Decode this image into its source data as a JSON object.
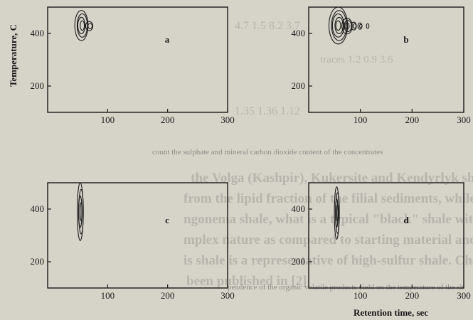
{
  "chart_data": [
    {
      "type": "contour",
      "panel": "a",
      "ylabel": "Temperature, C",
      "xlabel": "",
      "x_ticks": [
        100,
        200,
        300
      ],
      "y_ticks": [
        200,
        400
      ],
      "xlim": [
        0,
        300
      ],
      "ylim": [
        100,
        500
      ],
      "grid": false,
      "peaks": [
        {
          "x": 57,
          "y": 430,
          "width": 22,
          "height": 115,
          "rings": 4
        },
        {
          "x": 70,
          "y": 428,
          "width": 12,
          "height": 35,
          "rings": 2
        }
      ]
    },
    {
      "type": "contour",
      "panel": "b",
      "ylabel": "",
      "xlabel": "",
      "x_ticks": [
        100,
        200,
        300
      ],
      "y_ticks": [
        200,
        400
      ],
      "xlim": [
        0,
        300
      ],
      "ylim": [
        100,
        500
      ],
      "grid": false,
      "peaks": [
        {
          "x": 58,
          "y": 430,
          "width": 36,
          "height": 140,
          "rings": 5
        },
        {
          "x": 75,
          "y": 428,
          "width": 20,
          "height": 60,
          "rings": 3
        },
        {
          "x": 88,
          "y": 428,
          "width": 10,
          "height": 30,
          "rings": 2
        },
        {
          "x": 100,
          "y": 428,
          "width": 8,
          "height": 24,
          "rings": 2
        },
        {
          "x": 115,
          "y": 428,
          "width": 5,
          "height": 18,
          "rings": 1
        }
      ]
    },
    {
      "type": "contour",
      "panel": "c",
      "ylabel": "",
      "xlabel": "",
      "x_ticks": [
        100,
        200,
        300
      ],
      "y_ticks": [
        200,
        400
      ],
      "xlim": [
        0,
        300
      ],
      "ylim": [
        100,
        500
      ],
      "grid": false,
      "peaks": [
        {
          "x": 55,
          "y": 390,
          "width": 10,
          "height": 220,
          "rings": 4
        }
      ]
    },
    {
      "type": "contour",
      "panel": "d",
      "ylabel": "",
      "xlabel": "Retention time, sec",
      "x_ticks": [
        100,
        200,
        300
      ],
      "y_ticks": [
        200,
        400
      ],
      "xlim": [
        0,
        300
      ],
      "ylim": [
        100,
        500
      ],
      "grid": false,
      "peaks": [
        {
          "x": 55,
          "y": 385,
          "width": 9,
          "height": 200,
          "rings": 4
        }
      ]
    }
  ],
  "bleed_through_text": {
    "caption_line": "count the sulphate and mineral carbon dioxide content of the concentrates",
    "para_line_1": "the Volga (Kashpir), Kukersite and Kendyrlyk shale or",
    "para_line_2": "from the lipid fraction of the filial sediments, while the u",
    "para_line_3": "ngonema shale, what is a typical \"black\" shale with a kerogen",
    "para_line_4": "mplex nature as compared to starting material and its transfor",
    "para_line_5": "is shale is a representative of high-sulfur shale. Characteris",
    "para_line_6": "been published in [2]",
    "footer_line": "pendence of the organic volatile products yield on the temperature of the sh",
    "table_row_1": "4.7      1.5      8.2      3.7",
    "table_row_2": "traces      1.2      0.9      3.6",
    "table_row_3": "1.35      1.36      1.12"
  }
}
